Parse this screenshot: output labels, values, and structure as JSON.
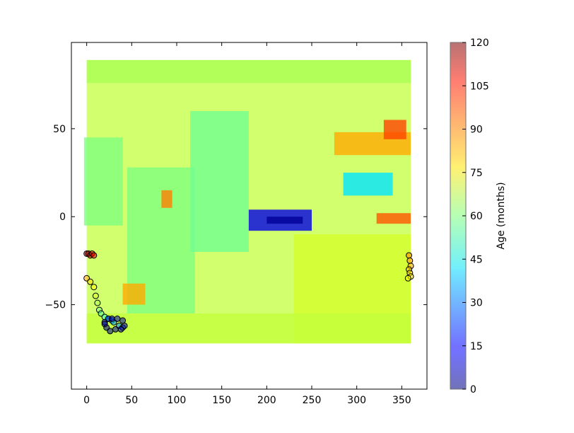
{
  "chart_data": {
    "type": "heatmap",
    "title": "",
    "xlabel": "",
    "ylabel": "",
    "xlim": [
      -17,
      378
    ],
    "ylim": [
      -98,
      99
    ],
    "x_ticks": [
      0,
      50,
      100,
      150,
      200,
      250,
      300,
      350
    ],
    "y_ticks": [
      50,
      0,
      -50
    ],
    "x_tick_labels": [
      "0",
      "50",
      "100",
      "150",
      "200",
      "250",
      "300",
      "350"
    ],
    "y_tick_labels": [
      "50",
      "0",
      "−50"
    ],
    "colorbar": {
      "label": "Age (months)",
      "range": [
        0,
        120
      ],
      "ticks": [
        0,
        15,
        30,
        45,
        60,
        75,
        90,
        105,
        120
      ],
      "tick_labels": [
        "0",
        "15",
        "30",
        "45",
        "60",
        "75",
        "90",
        "105",
        "120"
      ],
      "colormap": "jet"
    },
    "ocean_field": {
      "extent_lon": [
        0,
        360
      ],
      "extent_lat": [
        -72,
        89
      ],
      "background_age": 68,
      "regions": [
        {
          "name": "arctic-band",
          "lon": [
            0,
            360
          ],
          "lat": [
            76,
            89
          ],
          "age": 65
        },
        {
          "name": "atlantic-north",
          "lon": [
            -3,
            40
          ],
          "lat": [
            -5,
            45
          ],
          "age": 60
        },
        {
          "name": "indian-ocean",
          "lon": [
            45,
            120
          ],
          "lat": [
            -55,
            28
          ],
          "age": 60
        },
        {
          "name": "indian-hotspot",
          "lon": [
            83,
            95
          ],
          "lat": [
            5,
            15
          ],
          "age": 90
        },
        {
          "name": "indian-south-hot",
          "lon": [
            40,
            65
          ],
          "lat": [
            -50,
            -38
          ],
          "age": 85
        },
        {
          "name": "pacific-west",
          "lon": [
            115,
            180
          ],
          "lat": [
            -20,
            60
          ],
          "age": 58
        },
        {
          "name": "pacific-cold-tongue",
          "lon": [
            180,
            250
          ],
          "lat": [
            -8,
            4
          ],
          "age": 12
        },
        {
          "name": "pacific-cool-core",
          "lon": [
            200,
            240
          ],
          "lat": [
            -4,
            0
          ],
          "age": 3
        },
        {
          "name": "pacific-north-hot",
          "lon": [
            275,
            360
          ],
          "lat": [
            35,
            48
          ],
          "age": 85
        },
        {
          "name": "pacific-northeast-hot",
          "lon": [
            330,
            355
          ],
          "lat": [
            44,
            55
          ],
          "age": 97
        },
        {
          "name": "pacific-ne-cool",
          "lon": [
            285,
            340
          ],
          "lat": [
            12,
            25
          ],
          "age": 42
        },
        {
          "name": "pacific-east-hot",
          "lon": [
            322,
            360
          ],
          "lat": [
            -4,
            2
          ],
          "age": 95
        },
        {
          "name": "south-pacific",
          "lon": [
            230,
            360
          ],
          "lat": [
            -72,
            -10
          ],
          "age": 70
        },
        {
          "name": "southern-ocean",
          "lon": [
            0,
            360
          ],
          "lat": [
            -72,
            -55
          ],
          "age": 68
        }
      ]
    },
    "scatter_tracks": [
      {
        "name": "track-a",
        "x": [
          0,
          2,
          4,
          6,
          8
        ],
        "y": [
          -21,
          -21,
          -22,
          -21,
          -22
        ],
        "age": [
          118,
          115,
          112,
          110,
          108
        ]
      },
      {
        "name": "track-b",
        "x": [
          0,
          4,
          8,
          10,
          12,
          14,
          16,
          20,
          24,
          28,
          30,
          36,
          40
        ],
        "y": [
          -35,
          -37,
          -40,
          -45,
          -49,
          -53,
          -55,
          -57,
          -58,
          -59,
          -60,
          -62,
          -63
        ],
        "age": [
          85,
          80,
          75,
          70,
          65,
          60,
          55,
          50,
          45,
          40,
          35,
          30,
          25
        ]
      },
      {
        "name": "track-loop",
        "x": [
          20,
          24,
          28,
          34,
          40,
          42,
          38,
          32,
          26,
          22,
          20
        ],
        "y": [
          -60,
          -58,
          -58,
          -58,
          -59,
          -62,
          -64,
          -64,
          -65,
          -63,
          -61
        ],
        "age": [
          12,
          10,
          8,
          6,
          5,
          4,
          3,
          3,
          2,
          2,
          1
        ]
      },
      {
        "name": "track-east",
        "x": [
          358,
          359,
          360,
          358,
          359,
          360,
          357
        ],
        "y": [
          -22,
          -25,
          -28,
          -30,
          -32,
          -34,
          -35
        ],
        "age": [
          90,
          88,
          85,
          82,
          80,
          78,
          75
        ]
      }
    ]
  }
}
